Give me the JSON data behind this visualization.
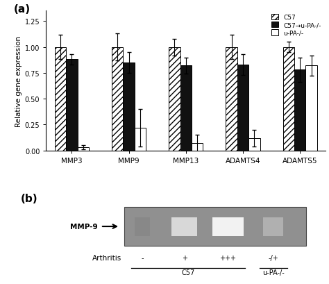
{
  "categories": [
    "MMP3",
    "MMP9",
    "MMP13",
    "ADAMTS4",
    "ADAMTS5"
  ],
  "C57_values": [
    1.0,
    1.0,
    1.0,
    1.0,
    1.0
  ],
  "C57_errors": [
    0.12,
    0.13,
    0.08,
    0.12,
    0.05
  ],
  "C57uPA_values": [
    0.88,
    0.85,
    0.82,
    0.83,
    0.78
  ],
  "C57uPA_errors": [
    0.05,
    0.1,
    0.08,
    0.1,
    0.12
  ],
  "uPA_values": [
    0.03,
    0.22,
    0.07,
    0.12,
    0.82
  ],
  "uPA_errors": [
    0.02,
    0.18,
    0.08,
    0.08,
    0.1
  ],
  "ylabel": "Relative gene expression",
  "ylim": [
    0.0,
    1.35
  ],
  "yticks": [
    0.0,
    0.25,
    0.5,
    0.75,
    1.0,
    1.25
  ],
  "panel_a_label": "(a)",
  "panel_b_label": "(b)",
  "bar_width": 0.2,
  "hatch_c57": "////",
  "color_c57": "#ffffff",
  "color_c57upa": "#111111",
  "color_upa": "#ffffff",
  "gel_bg": "#909090",
  "gel_border": "#555555"
}
